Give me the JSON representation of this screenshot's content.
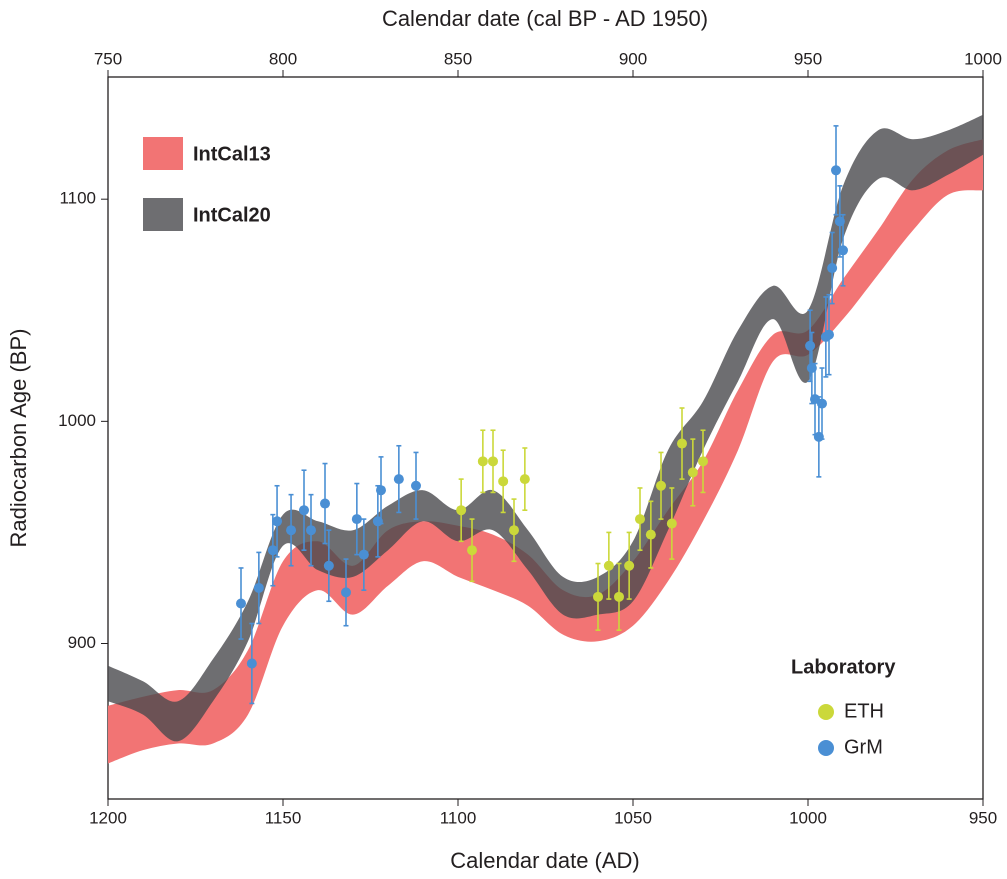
{
  "chart_data": {
    "type": "scatter",
    "x_label": "Calendar date (AD)",
    "y_label": "Radiocarbon Age (BP)",
    "x2_label": "Calendar date (cal BP - AD 1950)",
    "xlim": [
      1200,
      950
    ],
    "xticks": [
      1200,
      1150,
      1100,
      1050,
      1000,
      950
    ],
    "x2lim": [
      750,
      1000
    ],
    "x2ticks": [
      750,
      800,
      850,
      900,
      950,
      1000
    ],
    "ylim": [
      830,
      1155
    ],
    "yticks": [
      900,
      1000,
      1100
    ],
    "grid": false,
    "band_legend_position": "upper left",
    "legend_position": "lower right",
    "legend_title": "Laboratory",
    "bands": [
      {
        "name": "IntCal13",
        "color": "#f27474",
        "opacity": 1,
        "x": [
          1200,
          1190,
          1180,
          1170,
          1160,
          1150,
          1140,
          1130,
          1120,
          1110,
          1100,
          1090,
          1080,
          1070,
          1060,
          1050,
          1040,
          1030,
          1020,
          1010,
          1000,
          990,
          980,
          970,
          960,
          950
        ],
        "upper": [
          872,
          876,
          879,
          879,
          897,
          937,
          946,
          935,
          951,
          955,
          953,
          949,
          940,
          924,
          922,
          937,
          960,
          982,
          1014,
          1039,
          1041,
          1064,
          1086,
          1109,
          1122,
          1127
        ],
        "lower": [
          846,
          852,
          855,
          855,
          868,
          908,
          924,
          913,
          926,
          937,
          930,
          924,
          917,
          904,
          901,
          908,
          928,
          955,
          987,
          1027,
          1030,
          1046,
          1066,
          1086,
          1102,
          1104
        ]
      },
      {
        "name": "IntCal20",
        "color": "#4a4a4d",
        "opacity": 0.8,
        "x": [
          1200,
          1190,
          1180,
          1170,
          1160,
          1150,
          1140,
          1130,
          1120,
          1110,
          1100,
          1090,
          1080,
          1070,
          1060,
          1050,
          1040,
          1030,
          1020,
          1010,
          1000,
          990,
          980,
          970,
          960,
          950
        ],
        "upper": [
          890,
          883,
          874,
          893,
          919,
          958,
          955,
          951,
          962,
          969,
          960,
          969,
          951,
          930,
          930,
          946,
          987,
          1009,
          1041,
          1061,
          1050,
          1106,
          1131,
          1127,
          1131,
          1138
        ],
        "lower": [
          874,
          868,
          856,
          874,
          901,
          944,
          933,
          930,
          942,
          955,
          946,
          951,
          933,
          913,
          913,
          919,
          951,
          987,
          1018,
          1046,
          1018,
          1082,
          1109,
          1104,
          1111,
          1120
        ]
      }
    ],
    "series": [
      {
        "name": "ETH",
        "color": "#cbd83a",
        "x": [
          1099.1,
          1096.0,
          1092.9,
          1090.0,
          1087.1,
          1084.0,
          1080.9,
          1060.0,
          1056.9,
          1054.0,
          1051.1,
          1048.0,
          1044.9,
          1042.0,
          1038.9,
          1036.0,
          1032.9,
          1030.0
        ],
        "values": [
          960,
          942,
          982,
          982,
          973,
          951,
          974,
          921,
          935,
          921,
          935,
          956,
          949,
          971,
          954,
          990,
          977,
          982
        ],
        "errors": [
          14,
          14,
          14,
          14,
          14,
          14,
          14,
          15,
          15,
          15,
          15,
          14,
          15,
          15,
          16,
          16,
          15,
          14
        ]
      },
      {
        "name": "GrM",
        "color": "#4a8fd4",
        "x": [
          1162.0,
          1158.9,
          1156.9,
          1152.9,
          1151.7,
          1147.7,
          1144.0,
          1142.0,
          1138.0,
          1136.9,
          1132.0,
          1128.9,
          1126.9,
          1122.9,
          1122.0,
          1116.9,
          1112.0,
          999.4,
          998.9,
          998.0,
          996.9,
          996.0,
          994.9,
          994.0,
          993.1,
          992.0,
          990.9,
          990.0
        ],
        "values": [
          918,
          891,
          925,
          942,
          955,
          951,
          960,
          951,
          963,
          935,
          923,
          956,
          940,
          955,
          969,
          974,
          971,
          1034,
          1024,
          1010,
          993,
          1008,
          1038,
          1039,
          1069,
          1113,
          1090,
          1077
        ],
        "errors": [
          16,
          18,
          16,
          16,
          16,
          16,
          18,
          16,
          18,
          16,
          15,
          16,
          16,
          16,
          15,
          15,
          15,
          16,
          16,
          16,
          18,
          16,
          18,
          18,
          16,
          20,
          16,
          16
        ]
      }
    ]
  }
}
